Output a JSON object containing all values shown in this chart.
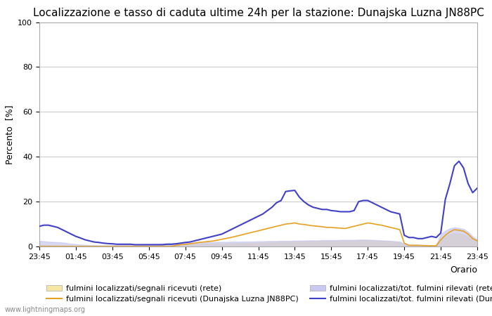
{
  "title": "Localizzazione e tasso di caduta ultime 24h per la stazione: Dunajska Luzna JN88PC",
  "ylabel": "Percento  [%]",
  "xlabel": "Orario",
  "watermark": "www.lightningmaps.org",
  "xlim": [
    0,
    96
  ],
  "ylim": [
    0,
    100
  ],
  "yticks": [
    0,
    20,
    40,
    60,
    80,
    100
  ],
  "xtick_labels": [
    "23:45",
    "01:45",
    "03:45",
    "05:45",
    "07:45",
    "09:45",
    "11:45",
    "13:45",
    "15:45",
    "17:45",
    "19:45",
    "21:45",
    "23:45"
  ],
  "xtick_positions": [
    0,
    8,
    16,
    24,
    32,
    40,
    48,
    56,
    64,
    72,
    80,
    88,
    96
  ],
  "legend_labels": [
    "fulmini localizzati/segnali ricevuti (rete)",
    "fulmini localizzati/segnali ricevuti (Dunajska Luzna JN88PC)",
    "fulmini localizzati/tot. fulmini rilevati (rete)",
    "fulmini localizzati/tot. fulmini rilevati (Dunajska Luzna JN88PC)"
  ],
  "fill_color_rete_segnali": "#f5e6a3",
  "fill_color_rete_tot": "#c8c8f0",
  "line_color_dunajska_segnali": "#e8a020",
  "line_color_dunajska_tot": "#4040c8",
  "background_color": "#ffffff",
  "grid_color": "#cccccc",
  "title_fontsize": 11,
  "axis_fontsize": 9,
  "tick_fontsize": 8,
  "legend_fontsize": 8,
  "n_points": 97,
  "rete_segnali": [
    0.5,
    0.6,
    0.6,
    0.5,
    0.5,
    0.4,
    0.4,
    0.3,
    0.3,
    0.3,
    0.3,
    0.3,
    0.3,
    0.3,
    0.3,
    0.4,
    0.4,
    0.4,
    0.5,
    0.5,
    0.5,
    0.6,
    0.6,
    0.7,
    0.7,
    0.8,
    0.8,
    0.8,
    0.9,
    0.9,
    0.9,
    1.0,
    1.0,
    1.1,
    1.1,
    1.2,
    1.2,
    1.2,
    1.3,
    1.3,
    1.3,
    1.4,
    1.4,
    1.4,
    1.5,
    1.5,
    1.5,
    1.6,
    1.7,
    1.8,
    1.8,
    1.9,
    2.0,
    2.0,
    2.1,
    2.1,
    2.2,
    2.2,
    2.3,
    2.3,
    2.4,
    2.4,
    2.5,
    2.5,
    2.5,
    2.6,
    2.6,
    2.7,
    2.7,
    2.7,
    2.8,
    2.8,
    2.8,
    2.7,
    2.6,
    2.5,
    2.4,
    2.3,
    2.2,
    2.1,
    0.9,
    0.5,
    0.5,
    0.5,
    0.4,
    0.3,
    0.3,
    0.3,
    3.0,
    4.5,
    5.5,
    6.0,
    5.8,
    5.5,
    4.5,
    3.0,
    2.0
  ],
  "rete_tot": [
    2.5,
    2.3,
    2.1,
    2.0,
    1.9,
    1.8,
    1.5,
    1.2,
    1.0,
    0.8,
    0.7,
    0.6,
    0.6,
    0.5,
    0.5,
    0.5,
    0.6,
    0.6,
    0.7,
    0.8,
    0.8,
    0.9,
    1.0,
    1.0,
    1.1,
    1.2,
    1.2,
    1.3,
    1.4,
    1.4,
    1.5,
    1.5,
    1.6,
    1.7,
    1.7,
    1.8,
    1.8,
    1.9,
    1.9,
    2.0,
    2.0,
    2.0,
    2.1,
    2.1,
    2.1,
    2.2,
    2.2,
    2.2,
    2.3,
    2.3,
    2.4,
    2.4,
    2.4,
    2.5,
    2.5,
    2.5,
    2.6,
    2.6,
    2.6,
    2.7,
    2.7,
    2.7,
    2.8,
    2.8,
    2.8,
    2.8,
    2.9,
    2.9,
    2.9,
    2.9,
    3.0,
    3.0,
    3.0,
    2.9,
    2.8,
    2.7,
    2.6,
    2.5,
    2.3,
    2.1,
    1.2,
    0.8,
    0.8,
    0.8,
    0.7,
    0.6,
    0.5,
    0.5,
    5.5,
    7.0,
    8.0,
    8.5,
    8.2,
    7.8,
    6.5,
    4.5,
    3.0
  ],
  "dunajska_segnali": [
    0.0,
    0.0,
    0.0,
    0.0,
    0.0,
    0.0,
    0.0,
    0.0,
    0.0,
    0.0,
    0.0,
    0.0,
    0.0,
    0.0,
    0.0,
    0.0,
    0.0,
    0.0,
    0.0,
    0.0,
    0.0,
    0.0,
    0.0,
    0.0,
    0.0,
    0.0,
    0.0,
    0.0,
    0.0,
    0.0,
    0.5,
    0.8,
    1.0,
    1.2,
    1.5,
    1.8,
    2.0,
    2.2,
    2.4,
    2.8,
    3.2,
    3.6,
    4.0,
    4.5,
    5.0,
    5.5,
    6.0,
    6.5,
    7.0,
    7.5,
    8.0,
    8.5,
    9.0,
    9.5,
    10.0,
    10.2,
    10.5,
    10.0,
    9.8,
    9.5,
    9.2,
    9.0,
    8.8,
    8.5,
    8.5,
    8.3,
    8.2,
    8.0,
    8.5,
    9.0,
    9.5,
    10.0,
    10.5,
    10.2,
    9.8,
    9.5,
    9.0,
    8.5,
    8.0,
    7.5,
    1.5,
    0.5,
    0.5,
    0.5,
    0.4,
    0.3,
    0.3,
    0.3,
    3.0,
    5.0,
    6.5,
    7.5,
    7.2,
    6.8,
    5.5,
    3.5,
    2.5
  ],
  "dunajska_tot": [
    9.0,
    9.5,
    9.5,
    9.0,
    8.5,
    7.5,
    6.5,
    5.5,
    4.5,
    3.8,
    3.0,
    2.5,
    2.0,
    1.8,
    1.5,
    1.3,
    1.2,
    1.0,
    1.0,
    1.0,
    1.0,
    0.8,
    0.8,
    0.8,
    0.8,
    0.8,
    0.8,
    0.8,
    1.0,
    1.0,
    1.2,
    1.5,
    1.8,
    2.0,
    2.5,
    3.0,
    3.5,
    4.0,
    4.5,
    5.0,
    5.5,
    6.5,
    7.5,
    8.5,
    9.5,
    10.5,
    11.5,
    12.5,
    13.5,
    14.5,
    16.0,
    17.5,
    19.5,
    20.5,
    24.5,
    24.8,
    25.0,
    22.0,
    20.0,
    18.5,
    17.5,
    17.0,
    16.5,
    16.5,
    16.0,
    15.8,
    15.5,
    15.5,
    15.5,
    16.0,
    20.0,
    20.5,
    20.5,
    19.5,
    18.5,
    17.5,
    16.5,
    15.5,
    15.0,
    14.5,
    5.0,
    4.0,
    4.0,
    3.5,
    3.5,
    4.0,
    4.5,
    4.0,
    6.0,
    21.0,
    28.0,
    36.0,
    38.0,
    35.0,
    28.0,
    24.0,
    26.0
  ]
}
